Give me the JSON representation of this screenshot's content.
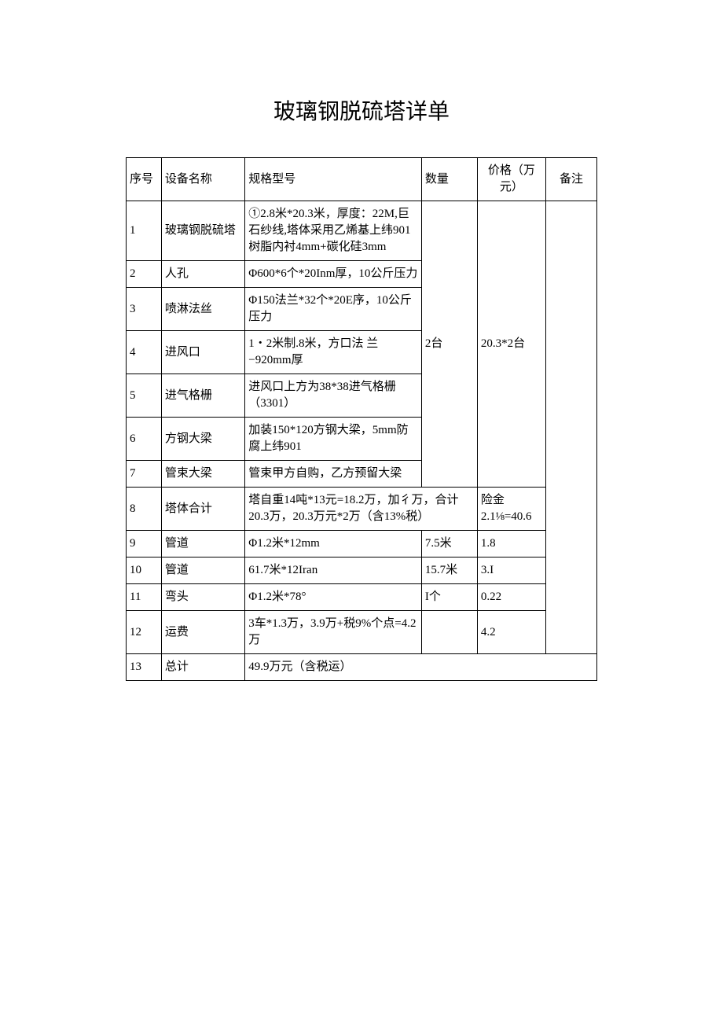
{
  "title": "玻璃钢脱硫塔详单",
  "header": {
    "seq": "序号",
    "name": "设备名称",
    "spec": "规格型号",
    "qty": "数量",
    "price": "价格（万元）",
    "note": "备注"
  },
  "merged_qty_1_7": "2台",
  "merged_price_1_7": "20.3*2台",
  "rows": [
    {
      "seq": "1",
      "name": "玻璃钢脱硫塔",
      "spec": "①2.8米*20.3米，厚度：22M,巨石纱线,塔体采用乙烯基上纬901树脂内衬4mm+碳化硅3mm"
    },
    {
      "seq": "2",
      "name": "人孔",
      "spec": "Φ600*6个*20Inm厚，10公斤压力"
    },
    {
      "seq": "3",
      "name": "喷淋法丝",
      "spec": "Φ150法兰*32个*20E序，10公斤压力"
    },
    {
      "seq": "4",
      "name": "进风口",
      "spec": "1・2米制.8米，方口法 兰−920mm厚"
    },
    {
      "seq": "5",
      "name": "进气格栅",
      "spec": "进风口上方为38*38进气格栅（3301）"
    },
    {
      "seq": "6",
      "name": "方钢大梁",
      "spec": "加装150*120方钢大梁，5mm防腐上纬901"
    },
    {
      "seq": "7",
      "name": "管束大梁",
      "spec": "管束甲方自购，乙方预留大梁"
    },
    {
      "seq": "8",
      "name": "塔体合计",
      "spec": "塔自重14吨*13元=18.2万，加彳万，合计20.3万，20.3万元*2万（含13%税）",
      "price": "险金2.1⅛=40.6"
    },
    {
      "seq": "9",
      "name": "管道",
      "spec": "Φ1.2米*12mm",
      "qty": "7.5米",
      "price": "1.8"
    },
    {
      "seq": "10",
      "name": "管道",
      "spec": "61.7米*12Iran",
      "qty": "15.7米",
      "price": "3.I"
    },
    {
      "seq": "11",
      "name": "弯头",
      "spec": "Φ1.2米*78°",
      "qty": "I个",
      "price": "0.22"
    },
    {
      "seq": "12",
      "name": "运费",
      "spec": "3车*1.3万，3.9万+税9%个点=4.2万",
      "qty": "",
      "price": "4.2"
    },
    {
      "seq": "13",
      "name": "总计",
      "spec": "49.9万元（含税运）"
    }
  ]
}
